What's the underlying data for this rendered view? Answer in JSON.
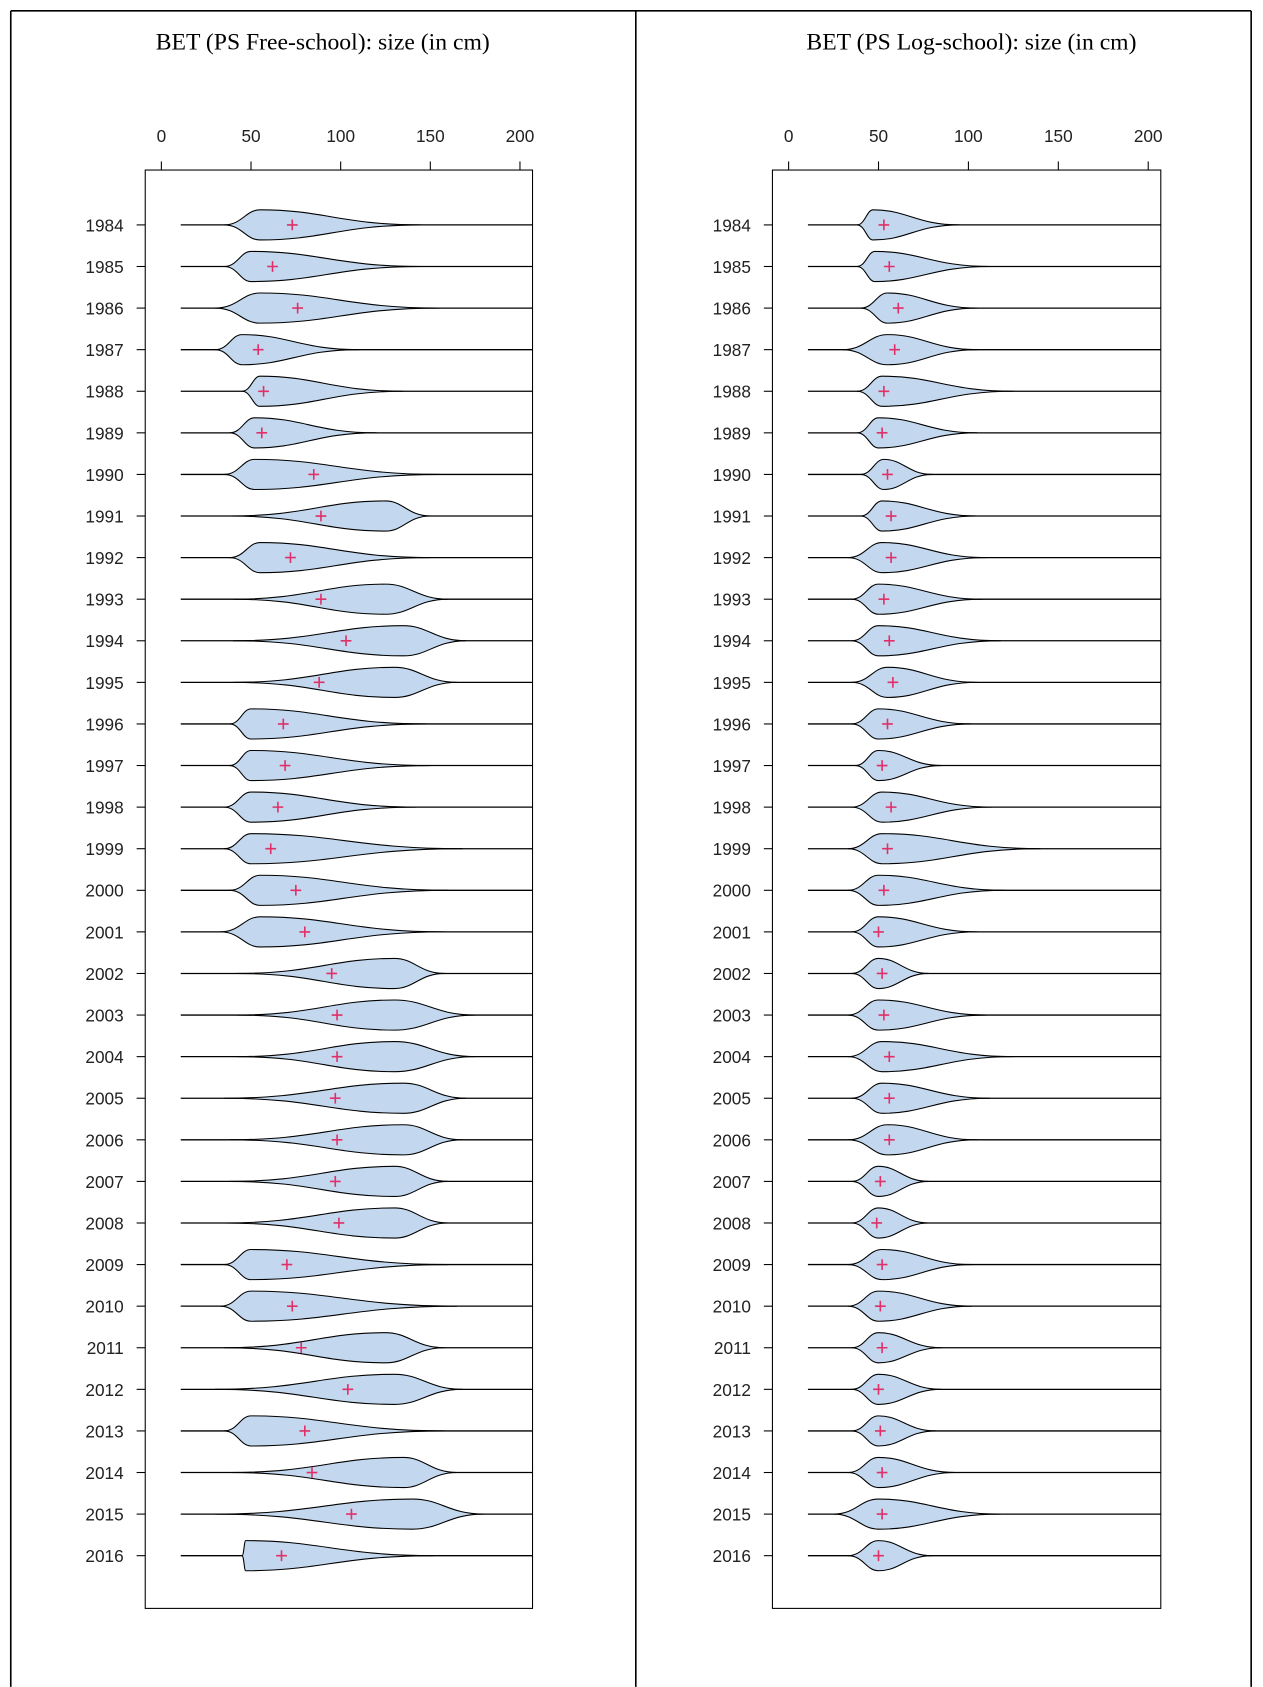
{
  "chart_data": [
    {
      "type": "violin",
      "title": "BET (PS Free-school): size (in cm)",
      "categories": [
        "1984",
        "1985",
        "1986",
        "1987",
        "1988",
        "1989",
        "1990",
        "1991",
        "1992",
        "1993",
        "1994",
        "1995",
        "1996",
        "1997",
        "1998",
        "1999",
        "2000",
        "2001",
        "2002",
        "2003",
        "2004",
        "2005",
        "2006",
        "2007",
        "2008",
        "2009",
        "2010",
        "2011",
        "2012",
        "2013",
        "2014",
        "2015",
        "2016"
      ],
      "min": [
        35,
        35,
        30,
        30,
        45,
        38,
        35,
        38,
        38,
        40,
        40,
        40,
        38,
        38,
        35,
        35,
        38,
        33,
        42,
        42,
        42,
        35,
        38,
        38,
        35,
        35,
        33,
        35,
        30,
        35,
        38,
        30,
        45
      ],
      "mode": [
        55,
        50,
        55,
        45,
        55,
        52,
        52,
        125,
        55,
        125,
        135,
        130,
        50,
        50,
        50,
        50,
        55,
        55,
        130,
        130,
        130,
        135,
        135,
        130,
        130,
        50,
        50,
        125,
        130,
        50,
        135,
        140,
        47
      ],
      "max": [
        145,
        145,
        155,
        110,
        135,
        120,
        155,
        150,
        150,
        160,
        170,
        165,
        148,
        150,
        142,
        168,
        160,
        158,
        158,
        175,
        175,
        170,
        168,
        160,
        160,
        160,
        165,
        158,
        168,
        158,
        165,
        180,
        152
      ],
      "mean": [
        73,
        62,
        76,
        54,
        57,
        56,
        85,
        89,
        72,
        89,
        103,
        88,
        68,
        69,
        65,
        61,
        75,
        80,
        95,
        98,
        98,
        97,
        98,
        97,
        99,
        70,
        73,
        78,
        104,
        80,
        84,
        106,
        67
      ],
      "xlim": [
        -9,
        207
      ],
      "xticks": [
        0,
        50,
        100,
        150,
        200
      ],
      "fill": "#c3d8ef",
      "mean_color": "#e0306a"
    },
    {
      "type": "violin",
      "title": "BET (PS Log-school): size (in cm)",
      "categories": [
        "1984",
        "1985",
        "1986",
        "1987",
        "1988",
        "1989",
        "1990",
        "1991",
        "1992",
        "1993",
        "1994",
        "1995",
        "1996",
        "1997",
        "1998",
        "1999",
        "2000",
        "2001",
        "2002",
        "2003",
        "2004",
        "2005",
        "2006",
        "2007",
        "2008",
        "2009",
        "2010",
        "2011",
        "2012",
        "2013",
        "2014",
        "2015",
        "2016"
      ],
      "min": [
        38,
        38,
        40,
        30,
        38,
        38,
        40,
        40,
        33,
        35,
        35,
        35,
        35,
        37,
        35,
        33,
        33,
        35,
        35,
        33,
        33,
        35,
        33,
        35,
        35,
        33,
        33,
        35,
        35,
        35,
        33,
        25,
        33
      ],
      "mode": [
        47,
        48,
        55,
        55,
        52,
        50,
        53,
        52,
        52,
        50,
        50,
        55,
        50,
        50,
        52,
        52,
        50,
        50,
        50,
        50,
        52,
        52,
        55,
        50,
        50,
        52,
        50,
        50,
        50,
        50,
        50,
        50,
        50
      ],
      "max": [
        95,
        112,
        105,
        105,
        125,
        105,
        80,
        105,
        110,
        108,
        118,
        105,
        102,
        85,
        113,
        140,
        120,
        105,
        78,
        110,
        125,
        112,
        105,
        78,
        78,
        102,
        102,
        85,
        85,
        82,
        93,
        118,
        80
      ],
      "mean": [
        53,
        56,
        61,
        59,
        53,
        52,
        55,
        57,
        57,
        53,
        56,
        58,
        55,
        52,
        57,
        55,
        53,
        50,
        52,
        53,
        56,
        56,
        56,
        51,
        49,
        52,
        51,
        52,
        50,
        51,
        52,
        52,
        50
      ],
      "xlim": [
        -9,
        207
      ],
      "xticks": [
        0,
        50,
        100,
        150,
        200
      ],
      "fill": "#c3d8ef",
      "mean_color": "#e0306a"
    }
  ]
}
